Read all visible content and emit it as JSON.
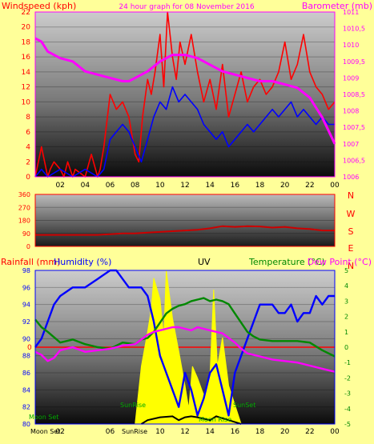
{
  "chart_data": [
    {
      "type": "line",
      "panel": "wind-barometer",
      "title": "24 hour graph for 08 November 2016",
      "left_axis_label": "Windspeed (kph)",
      "right_axis_label": "Barometer (mb)",
      "x_ticks": [
        "02",
        "04",
        "06",
        "08",
        "10",
        "12",
        "14",
        "16",
        "18",
        "20",
        "22",
        "00"
      ],
      "x_range": [
        0,
        24
      ],
      "left_ylim": [
        0,
        22
      ],
      "left_ticks": [
        "0",
        "2",
        "4",
        "6",
        "8",
        "10",
        "12",
        "14",
        "16",
        "18",
        "20",
        "22"
      ],
      "right_ylim": [
        1006,
        1011
      ],
      "right_ticks": [
        "1006",
        "1006,5",
        "1007",
        "1007,5",
        "1008",
        "1008,5",
        "1009",
        "1009,5",
        "1010",
        "1010,5",
        "1011"
      ],
      "series": [
        {
          "name": "Wind gust",
          "color": "#ff0000",
          "axis": "left",
          "x": [
            0.0,
            0.5,
            1.0,
            1.2,
            1.5,
            2.0,
            2.3,
            2.6,
            3.0,
            3.2,
            4.0,
            4.5,
            5.0,
            5.2,
            5.5,
            6.0,
            6.5,
            7.0,
            7.5,
            8.0,
            8.3,
            8.6,
            9.0,
            9.3,
            9.6,
            10.0,
            10.3,
            10.6,
            11.0,
            11.3,
            11.6,
            12.0,
            12.5,
            13.0,
            13.5,
            14.0,
            14.5,
            15.0,
            15.5,
            16.0,
            16.5,
            17.0,
            17.5,
            18.0,
            18.5,
            19.0,
            19.5,
            20.0,
            20.5,
            21.0,
            21.5,
            22.0,
            22.5,
            23.0,
            23.5,
            24.0
          ],
          "y": [
            0,
            4,
            0,
            1,
            2,
            1,
            0,
            2,
            0,
            1,
            0,
            3,
            0,
            1,
            4,
            11,
            9,
            10,
            8,
            3,
            2,
            8,
            13,
            11,
            14,
            19,
            12,
            22,
            16,
            13,
            18,
            15,
            19,
            14,
            10,
            13,
            9,
            15,
            8,
            11,
            14,
            10,
            12,
            13,
            11,
            12,
            14,
            18,
            13,
            15,
            19,
            14,
            12,
            11,
            9,
            10
          ]
        },
        {
          "name": "Wind speed",
          "color": "#0000ff",
          "axis": "left",
          "x": [
            0.0,
            0.5,
            1.0,
            2.0,
            3.0,
            4.0,
            5.0,
            5.5,
            6.0,
            6.5,
            7.0,
            7.5,
            8.0,
            8.5,
            9.0,
            9.5,
            10.0,
            10.5,
            11.0,
            11.5,
            12.0,
            12.5,
            13.0,
            13.5,
            14.0,
            14.5,
            15.0,
            15.5,
            16.0,
            16.5,
            17.0,
            17.5,
            18.0,
            18.5,
            19.0,
            19.5,
            20.0,
            20.5,
            21.0,
            21.5,
            22.0,
            22.5,
            23.0,
            23.5,
            24.0
          ],
          "y": [
            0,
            1,
            0,
            1,
            0,
            1,
            0,
            1,
            5,
            6,
            7,
            6,
            4,
            2,
            5,
            8,
            10,
            9,
            12,
            10,
            11,
            10,
            9,
            7,
            6,
            5,
            6,
            4,
            5,
            6,
            7,
            6,
            7,
            8,
            9,
            8,
            9,
            10,
            8,
            9,
            8,
            7,
            8,
            7,
            7
          ]
        },
        {
          "name": "Barometer",
          "color": "#ff00ff",
          "axis": "right",
          "x": [
            0.0,
            0.5,
            1.0,
            1.5,
            2.0,
            3.0,
            4.0,
            5.0,
            6.0,
            7.0,
            7.5,
            8.0,
            9.0,
            10.0,
            10.5,
            11.0,
            11.5,
            12.0,
            13.0,
            14.0,
            15.0,
            16.0,
            17.0,
            18.0,
            19.0,
            20.0,
            21.0,
            22.0,
            22.5,
            23.0,
            23.5,
            24.0
          ],
          "y": [
            1010.2,
            1010.1,
            1009.8,
            1009.7,
            1009.6,
            1009.5,
            1009.2,
            1009.1,
            1009.0,
            1008.9,
            1008.9,
            1009.0,
            1009.2,
            1009.5,
            1009.6,
            1009.7,
            1009.7,
            1009.7,
            1009.6,
            1009.4,
            1009.2,
            1009.1,
            1009.0,
            1008.9,
            1008.9,
            1008.8,
            1008.7,
            1008.4,
            1008.1,
            1007.8,
            1007.4,
            1007.0
          ]
        }
      ]
    },
    {
      "type": "line",
      "panel": "wind-direction",
      "left_ticks": [
        "0",
        "90",
        "180",
        "270",
        "360"
      ],
      "ylim": [
        0,
        360
      ],
      "right_labels": [
        "N",
        "W",
        "S",
        "E",
        "N"
      ],
      "series": [
        {
          "name": "Wind direction",
          "color": "#cc0000",
          "x": [
            0,
            2,
            4,
            5,
            6,
            7,
            8,
            9,
            10,
            11,
            12,
            13,
            14,
            15,
            16,
            17,
            18,
            19,
            20,
            21,
            22,
            23,
            24
          ],
          "y": [
            80,
            80,
            80,
            80,
            85,
            90,
            90,
            95,
            100,
            105,
            110,
            115,
            125,
            140,
            135,
            140,
            138,
            130,
            135,
            125,
            120,
            110,
            110
          ]
        }
      ]
    },
    {
      "type": "line",
      "panel": "humidity-temperature",
      "labels": {
        "rainfall": "Rainfall (mm)",
        "humidity": "Humidity (%)",
        "uv": "UV",
        "temperature": "Temperature (°C)",
        "dewpoint": "Dew Point (°C)"
      },
      "left_ylim": [
        80,
        98
      ],
      "left_ticks": [
        "80",
        "82",
        "84",
        "86",
        "88",
        "90",
        "92",
        "94",
        "96",
        "98"
      ],
      "right_ylim": [
        -5,
        5
      ],
      "right_ticks": [
        "-5",
        "-4",
        "-3",
        "-2",
        "-1",
        "0",
        "1",
        "2",
        "3",
        "4",
        "5"
      ],
      "zero_marker": "0",
      "x_ticks": [
        "02",
        "04",
        "06",
        "08",
        "10",
        "12",
        "14",
        "16",
        "18",
        "20",
        "22",
        "00"
      ],
      "annotations": {
        "moon_set": "Moon Set",
        "moon_set_bottom": "Moon Set",
        "sun_rise": "SunRise",
        "sun_rise_bottom": "SunRise",
        "sun_set": "SunSet",
        "moon_rise": "Moon Rise"
      },
      "series": [
        {
          "name": "Humidity",
          "color": "#0000ff",
          "axis": "left",
          "x": [
            0.0,
            0.5,
            1.0,
            1.5,
            2.0,
            3.0,
            4.0,
            5.0,
            6.0,
            6.5,
            7.0,
            7.5,
            8.0,
            8.5,
            9.0,
            9.5,
            10.0,
            10.5,
            11.0,
            11.5,
            12.0,
            12.5,
            13.0,
            13.5,
            14.0,
            14.5,
            15.0,
            15.5,
            16.0,
            16.5,
            17.0,
            17.5,
            18.0,
            18.5,
            19.0,
            19.5,
            20.0,
            20.5,
            21.0,
            21.5,
            22.0,
            22.5,
            23.0,
            23.5,
            24.0
          ],
          "y": [
            89,
            90,
            92,
            94,
            95,
            96,
            96,
            97,
            98,
            98,
            97,
            96,
            96,
            96,
            95,
            92,
            88,
            86,
            84,
            82,
            86,
            84,
            81,
            83,
            86,
            87,
            84,
            81,
            86,
            88,
            90,
            92,
            94,
            94,
            94,
            93,
            93,
            94,
            92,
            93,
            93,
            95,
            94,
            95,
            95
          ]
        },
        {
          "name": "Temperature",
          "color": "#008800",
          "axis": "right",
          "x": [
            0.0,
            0.5,
            1.0,
            2.0,
            3.0,
            4.0,
            5.0,
            6.0,
            7.0,
            8.0,
            8.5,
            9.0,
            9.5,
            10.0,
            10.5,
            11.0,
            11.5,
            12.0,
            12.5,
            13.0,
            13.5,
            14.0,
            14.5,
            15.0,
            15.5,
            16.0,
            16.5,
            17.0,
            17.5,
            18.0,
            19.0,
            20.0,
            21.0,
            22.0,
            23.0,
            24.0
          ],
          "y": [
            1.8,
            1.3,
            1.0,
            0.3,
            0.5,
            0.2,
            0.0,
            -0.1,
            0.3,
            0.2,
            0.5,
            0.6,
            1.0,
            1.6,
            2.2,
            2.5,
            2.7,
            2.8,
            3.0,
            3.1,
            3.2,
            3.0,
            3.1,
            3.0,
            2.8,
            2.2,
            1.6,
            1.0,
            0.7,
            0.5,
            0.4,
            0.4,
            0.4,
            0.3,
            -0.2,
            -0.6
          ]
        },
        {
          "name": "Dew point",
          "color": "#ff00ff",
          "axis": "right",
          "x": [
            0.0,
            0.5,
            1.0,
            1.5,
            2.0,
            3.0,
            4.0,
            5.0,
            6.0,
            7.0,
            8.0,
            8.5,
            9.0,
            9.5,
            10.0,
            10.5,
            11.0,
            11.5,
            12.0,
            12.5,
            13.0,
            13.5,
            14.0,
            14.5,
            15.0,
            15.5,
            16.0,
            16.5,
            17.0,
            18.0,
            19.0,
            20.0,
            21.0,
            22.0,
            23.0,
            24.0
          ],
          "y": [
            -0.3,
            -0.5,
            -0.9,
            -0.7,
            -0.2,
            0.0,
            -0.3,
            -0.2,
            -0.1,
            0.1,
            0.2,
            0.5,
            0.8,
            1.0,
            1.1,
            1.2,
            1.3,
            1.3,
            1.2,
            1.1,
            1.3,
            1.2,
            1.1,
            1.0,
            0.9,
            0.6,
            0.3,
            -0.1,
            -0.4,
            -0.6,
            -0.8,
            -0.9,
            -1.0,
            -1.2,
            -1.4,
            -1.6
          ]
        },
        {
          "name": "UV",
          "color": "#ffff00",
          "axis": "uv",
          "ymax": 8,
          "x": [
            8.0,
            8.5,
            9.0,
            9.3,
            9.5,
            10.0,
            10.3,
            10.5,
            11.0,
            11.5,
            12.0,
            12.3,
            12.6,
            13.0,
            13.5,
            14.0,
            14.3,
            14.6,
            15.0,
            15.5,
            16.0,
            16.5
          ],
          "y": [
            0,
            3.0,
            4.8,
            6.0,
            7.6,
            6.5,
            4.5,
            8.0,
            5.5,
            3.8,
            2.0,
            0.8,
            3.0,
            2.4,
            1.5,
            2.5,
            7.0,
            3.0,
            4.5,
            2.0,
            1.0,
            0
          ]
        },
        {
          "name": "Solar",
          "color": "#000000",
          "axis": "uv",
          "ymax": 8,
          "x": [
            8.5,
            9.0,
            10.0,
            11.0,
            11.5,
            12.0,
            12.5,
            13.0,
            14.0,
            14.5,
            15.0,
            16.0,
            16.5
          ],
          "y": [
            0,
            0.2,
            0.35,
            0.4,
            0.2,
            0.35,
            0.4,
            0.35,
            0.2,
            0.4,
            0.3,
            0.1,
            0
          ]
        }
      ]
    }
  ]
}
